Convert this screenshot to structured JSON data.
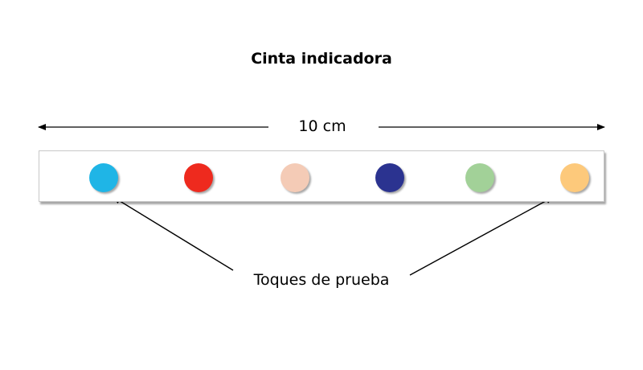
{
  "title": "Cinta indicadora",
  "length_label": "10 cm",
  "callout_label": "Toques de prueba",
  "pads": [
    {
      "name": "pad-cyan",
      "color": "#1fb5e6"
    },
    {
      "name": "pad-red",
      "color": "#ee2a1e"
    },
    {
      "name": "pad-peach",
      "color": "#f4cbb6"
    },
    {
      "name": "pad-navy",
      "color": "#2b3390"
    },
    {
      "name": "pad-light-green",
      "color": "#a2d198"
    },
    {
      "name": "pad-light-orange",
      "color": "#fdc97b"
    }
  ]
}
